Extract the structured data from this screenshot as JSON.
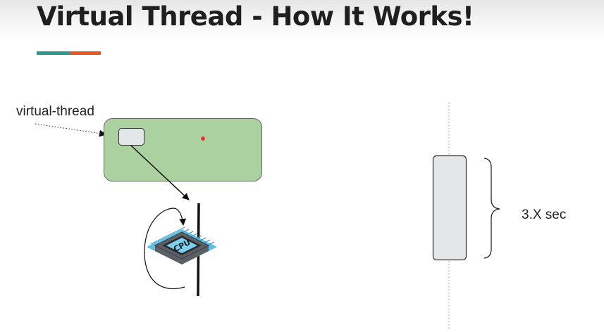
{
  "slide": {
    "title": "Virtual Thread - How It Works!",
    "accent_colors": {
      "teal": "#2a9a8c",
      "orange": "#e4571e"
    }
  },
  "diagram": {
    "virtual_thread_label": "virtual-thread",
    "duration_label": "3.X sec",
    "cpu_chip_text": "CPU",
    "colors": {
      "pool_fill": "#acd1a0",
      "pool_stroke": "#666666",
      "thread_box_fill": "#e4e7ea",
      "red_dot": "#e53935",
      "chip_body": "#5c5f66",
      "chip_top": "#7ed0ee",
      "chip_pins": "#4fb8e0",
      "execution_bar_fill": "#e4e7ea",
      "line": "#111111"
    }
  }
}
